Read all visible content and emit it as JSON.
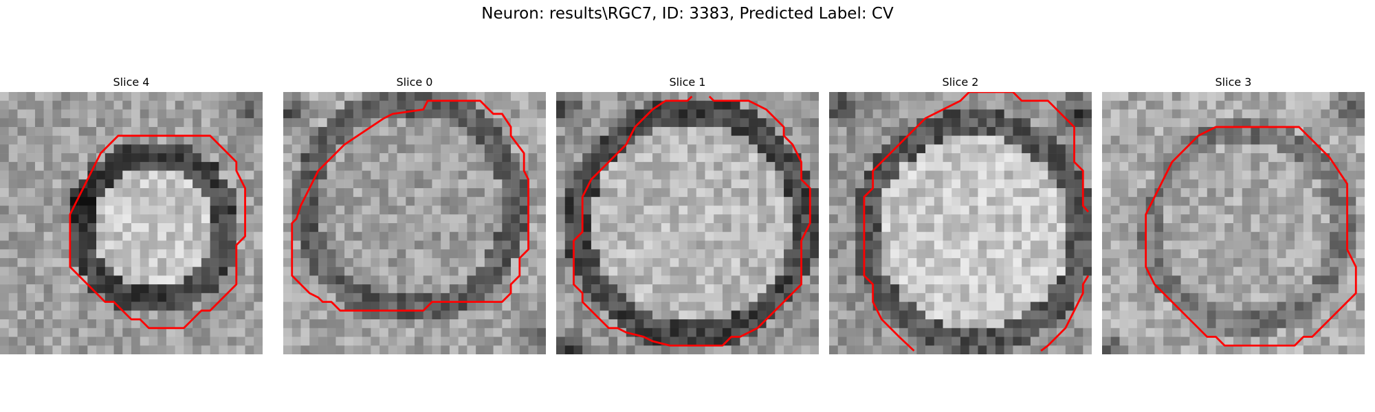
{
  "figure": {
    "title": "Neuron: results\\RGC7, ID: 3383, Predicted Label: CV"
  },
  "panels": [
    {
      "title": "Slice 0"
    },
    {
      "title": "Slice 1"
    },
    {
      "title": "Slice 2"
    },
    {
      "title": "Slice 3"
    },
    {
      "title": "Slice 4"
    }
  ],
  "colors": {
    "contour": "#ff0000"
  }
}
